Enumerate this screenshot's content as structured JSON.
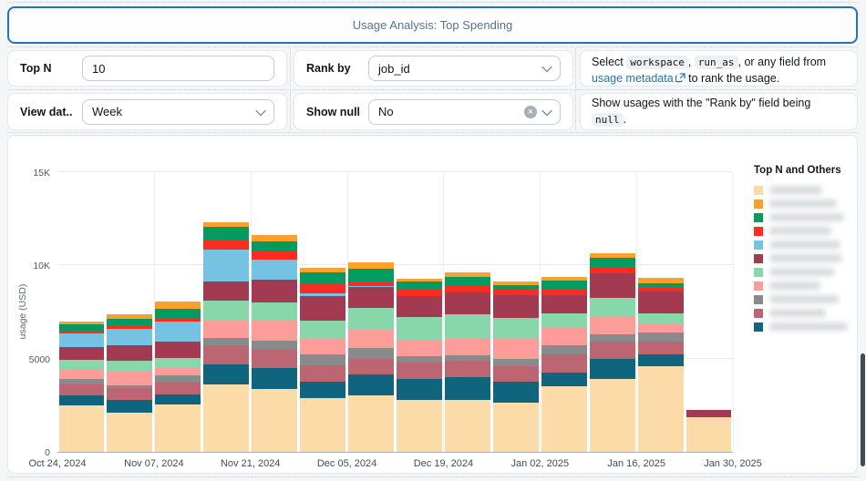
{
  "header": {
    "title": "Usage Analysis: Top Spending"
  },
  "controls": {
    "top_n": {
      "label": "Top N",
      "value": "10"
    },
    "rank_by": {
      "label": "Rank by",
      "value": "job_id"
    },
    "view_data_by": {
      "label": "View dat...",
      "value": "Week"
    },
    "show_null": {
      "label": "Show null",
      "value": "No"
    }
  },
  "help_rank_by": {
    "t1": "Select ",
    "code1": "workspace",
    "t2": ", ",
    "code2": "run_as",
    "t3": ", or any field from",
    "link": "usage metadata",
    "t4": " to rank the usage."
  },
  "help_show_null": {
    "t1": "Show usages with the \"Rank by\" field being ",
    "code1": "null",
    "t2": "."
  },
  "chart_data": {
    "type": "bar",
    "stacked": true,
    "ylabel": "usage (USD)",
    "ylim": [
      0,
      15000
    ],
    "grid": true,
    "legend_title": "Top N and Others",
    "legend_position": "right",
    "legend_labels_redacted": true,
    "categories": [
      "Oct 24, 2024",
      "Oct 31, 2024",
      "Nov 07, 2024",
      "Nov 14, 2024",
      "Nov 21, 2024",
      "Nov 28, 2024",
      "Dec 05, 2024",
      "Dec 12, 2024",
      "Dec 19, 2024",
      "Dec 26, 2024",
      "Jan 02, 2025",
      "Jan 09, 2025",
      "Jan 16, 2025",
      "Jan 23, 2025"
    ],
    "x_ticks": [
      {
        "index": 0,
        "label": "Oct 24, 2024"
      },
      {
        "index": 2,
        "label": "Nov 07, 2024"
      },
      {
        "index": 4,
        "label": "Nov 21, 2024"
      },
      {
        "index": 6,
        "label": "Dec 05, 2024"
      },
      {
        "index": 8,
        "label": "Dec 19, 2024"
      },
      {
        "index": 10,
        "label": "Jan 02, 2025"
      },
      {
        "index": 12,
        "label": "Jan 16, 2025"
      },
      {
        "index": 14,
        "label": "Jan 30, 2025"
      }
    ],
    "y_ticks": [
      {
        "value": 0,
        "label": "0"
      },
      {
        "value": 5000,
        "label": "5000"
      },
      {
        "value": 10000,
        "label": "10K"
      },
      {
        "value": 15000,
        "label": "15K"
      }
    ],
    "stack_bottom_to_top": [
      0,
      10,
      9,
      8,
      7,
      6,
      5,
      4,
      3,
      2,
      1
    ],
    "series": [
      {
        "label": "",
        "label_redacted": true,
        "color": "#FBDCA8",
        "values": [
          2500,
          2100,
          2550,
          3600,
          3350,
          2860,
          3025,
          2790,
          2790,
          2630,
          3520,
          3930,
          4580,
          1880
        ]
      },
      {
        "label": "",
        "label_redacted": true,
        "color": "#F9A12C",
        "values": [
          180,
          230,
          400,
          260,
          375,
          215,
          380,
          160,
          260,
          190,
          210,
          240,
          290,
          0
        ]
      },
      {
        "label": "",
        "label_redacted": true,
        "color": "#049B61",
        "values": [
          360,
          400,
          500,
          720,
          540,
          650,
          650,
          440,
          520,
          260,
          440,
          490,
          200,
          0
        ]
      },
      {
        "label": "",
        "label_redacted": true,
        "color": "#FB2D21",
        "values": [
          110,
          150,
          150,
          455,
          445,
          490,
          245,
          300,
          330,
          280,
          330,
          330,
          250,
          0
        ]
      },
      {
        "label": "",
        "label_redacted": true,
        "color": "#76C2E3",
        "values": [
          750,
          900,
          1100,
          1720,
          1060,
          150,
          60,
          0,
          0,
          0,
          0,
          0,
          0,
          0
        ]
      },
      {
        "label": "",
        "label_redacted": true,
        "color": "#A23A51",
        "values": [
          650,
          800,
          850,
          1060,
          1220,
          1320,
          1145,
          1140,
          1140,
          1230,
          980,
          1310,
          1140,
          375
        ]
      },
      {
        "label": "",
        "label_redacted": true,
        "color": "#88D7AA",
        "values": [
          550,
          600,
          550,
          1060,
          980,
          980,
          1165,
          1220,
          1300,
          1140,
          810,
          980,
          570,
          0
        ]
      },
      {
        "label": "",
        "label_redacted": true,
        "color": "#FE9C99",
        "values": [
          500,
          750,
          400,
          900,
          1070,
          820,
          980,
          900,
          900,
          1060,
          900,
          980,
          490,
          0
        ]
      },
      {
        "label": "",
        "label_redacted": true,
        "color": "#898A8B",
        "values": [
          300,
          150,
          350,
          410,
          490,
          570,
          570,
          330,
          330,
          410,
          490,
          410,
          490,
          0
        ]
      },
      {
        "label": "",
        "label_redacted": true,
        "color": "#BC6573",
        "values": [
          550,
          600,
          650,
          1030,
          980,
          900,
          815,
          890,
          860,
          810,
          980,
          900,
          650,
          0
        ]
      },
      {
        "label": "",
        "label_redacted": true,
        "color": "#10657E",
        "values": [
          550,
          700,
          550,
          1090,
          1140,
          900,
          1145,
          1110,
          1220,
          1140,
          740,
          1060,
          660,
          0
        ]
      }
    ]
  }
}
